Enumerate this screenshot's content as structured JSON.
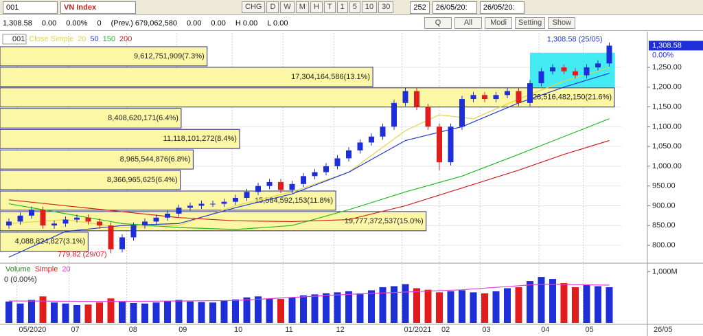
{
  "toolbar": {
    "symbol": "001",
    "name": "VN Index",
    "buttons": [
      "CHG",
      "D",
      "W",
      "M",
      "H",
      "T",
      "1",
      "5",
      "10",
      "30"
    ],
    "bars": "252",
    "from": "26/05/20:",
    "to": "26/05/20:"
  },
  "info_bar": {
    "fields": [
      "1,308.58",
      "0.00",
      "0.00%",
      "0",
      "(Prev.) 679,062,580",
      "0.00",
      "0.00",
      "H 0.00",
      "L 0.00"
    ],
    "buttons": [
      "Q",
      "All",
      "Modi",
      "Setting",
      "Show"
    ]
  },
  "chart_data": [
    {
      "type": "candlestick",
      "symbol": "001",
      "indicator": "Close Simple",
      "up_color": "#1f2fd8",
      "down_color": "#e01c1c",
      "open": [
        850,
        860,
        875,
        890,
        850,
        855,
        865,
        870,
        860,
        850,
        790,
        820,
        850,
        860,
        870,
        880,
        895,
        900,
        905,
        905,
        910,
        920,
        935,
        950,
        960,
        940,
        955,
        975,
        985,
        1000,
        1020,
        1040,
        1060,
        1075,
        1100,
        1160,
        1190,
        1150,
        1100,
        1010,
        1100,
        1170,
        1180,
        1170,
        1180,
        1190,
        1160,
        1210,
        1240,
        1250,
        1240,
        1230,
        1250,
        1260
      ],
      "high": [
        868,
        883,
        898,
        898,
        863,
        873,
        878,
        878,
        868,
        858,
        828,
        858,
        868,
        878,
        888,
        903,
        908,
        913,
        913,
        918,
        928,
        943,
        958,
        968,
        968,
        963,
        983,
        993,
        1008,
        1028,
        1048,
        1068,
        1083,
        1108,
        1168,
        1198,
        1198,
        1158,
        1108,
        1108,
        1178,
        1188,
        1188,
        1188,
        1198,
        1198,
        1218,
        1248,
        1258,
        1258,
        1248,
        1258,
        1268,
        1313
      ],
      "low": [
        842,
        852,
        867,
        842,
        842,
        847,
        857,
        852,
        842,
        780,
        782,
        812,
        842,
        852,
        862,
        872,
        887,
        892,
        897,
        897,
        902,
        912,
        927,
        942,
        932,
        932,
        947,
        967,
        977,
        992,
        1012,
        1032,
        1052,
        1067,
        1092,
        1152,
        1142,
        1092,
        990,
        1002,
        1092,
        1162,
        1162,
        1162,
        1172,
        1152,
        1152,
        1202,
        1232,
        1232,
        1222,
        1222,
        1242,
        1252
      ],
      "close": [
        860,
        875,
        890,
        850,
        855,
        865,
        870,
        860,
        850,
        790,
        820,
        850,
        860,
        870,
        880,
        895,
        900,
        905,
        905,
        910,
        920,
        935,
        950,
        960,
        940,
        955,
        975,
        985,
        1000,
        1020,
        1040,
        1060,
        1075,
        1100,
        1160,
        1190,
        1150,
        1100,
        1010,
        1100,
        1170,
        1180,
        1170,
        1180,
        1190,
        1160,
        1210,
        1240,
        1250,
        1240,
        1230,
        1250,
        1260,
        1305
      ],
      "series": [
        {
          "name": "20",
          "color": "#e2d44a",
          "x": [
            0,
            5,
            10,
            15,
            20,
            25,
            30,
            35,
            38,
            41,
            45,
            49,
            53
          ],
          "values": [
            855,
            865,
            845,
            850,
            900,
            935,
            985,
            1090,
            1130,
            1120,
            1170,
            1215,
            1250
          ]
        },
        {
          "name": "50",
          "color": "#2038d0",
          "x": [
            0,
            5,
            10,
            15,
            20,
            25,
            30,
            35,
            40,
            45,
            49,
            53
          ],
          "values": [
            770,
            835,
            850,
            855,
            895,
            930,
            985,
            1065,
            1100,
            1160,
            1200,
            1235
          ]
        },
        {
          "name": "150",
          "color": "#22b822",
          "x": [
            0,
            5,
            10,
            15,
            20,
            25,
            30,
            35,
            40,
            45,
            49,
            53
          ],
          "values": [
            905,
            880,
            855,
            845,
            840,
            850,
            890,
            935,
            975,
            1030,
            1075,
            1120
          ]
        },
        {
          "name": "200",
          "color": "#d02020",
          "x": [
            0,
            5,
            10,
            15,
            20,
            25,
            30,
            35,
            40,
            45,
            49,
            53
          ],
          "values": [
            915,
            900,
            885,
            870,
            862,
            860,
            865,
            900,
            945,
            990,
            1030,
            1065
          ]
        }
      ],
      "volume_profile": {
        "color": "#fbf7a4",
        "bins": [
          783,
          835,
          887,
          939,
          991,
          1043,
          1095,
          1148,
          1200,
          1252,
          1304
        ],
        "values": [
          4088824827,
          19777372537,
          15584592153,
          8366965625,
          8965544876,
          11118101272,
          8408620171,
          28516482150,
          17304164586,
          9612751909
        ],
        "value_labels": [
          "4,088,824,827(3.1%)",
          "19,777,372,537(15.0%)",
          "15,584,592,153(11.8%)",
          "8,366,965,625(6.4%)",
          "8,965,544,876(6.8%)",
          "11,118,101,272(8.4%)",
          "8,408,620,171(6.4%)",
          "28,516,482,150(21.6%)",
          "17,304,164,586(13.1%)",
          "9,612,751,909(7.3%)"
        ]
      },
      "selection": {
        "x": [
          46,
          53.5
        ],
        "y": [
          1200,
          1287
        ],
        "color": "#22e8f0"
      },
      "high_label": "1,308.58 (25/05)",
      "low_label": "779.82 (29/07)",
      "last_label": "1,308.58",
      "change_label": "0.00%",
      "ylim": [
        760,
        1337
      ],
      "yticks": [
        {
          "value": 800,
          "label": "800.00"
        },
        {
          "value": 850,
          "label": "850.00"
        },
        {
          "value": 900,
          "label": "900.00"
        },
        {
          "value": 950,
          "label": "950.00"
        },
        {
          "value": 1000,
          "label": "1,000.00"
        },
        {
          "value": 1050,
          "label": "1,050.00"
        },
        {
          "value": 1100,
          "label": "1,100.00"
        },
        {
          "value": 1150,
          "label": "1,150.00"
        },
        {
          "value": 1200,
          "label": "1,200.00"
        },
        {
          "value": 1250,
          "label": "1,250.00"
        }
      ],
      "xticks": [
        {
          "value": 0.7,
          "label": "05/2020"
        },
        {
          "value": 5.3,
          "label": "07"
        },
        {
          "value": 10.4,
          "label": "08"
        },
        {
          "value": 14.8,
          "label": "09"
        },
        {
          "value": 19.7,
          "label": "10"
        },
        {
          "value": 24.2,
          "label": "11"
        },
        {
          "value": 28.7,
          "label": "12"
        },
        {
          "value": 34.7,
          "label": "01/2021"
        },
        {
          "value": 38,
          "label": "02"
        },
        {
          "value": 41.6,
          "label": "03"
        },
        {
          "value": 46.8,
          "label": "04"
        },
        {
          "value": 50.7,
          "label": "05"
        }
      ],
      "end_label": "26/05",
      "grid": true
    },
    {
      "type": "bar",
      "indicator": "Volume",
      "method": "Simple",
      "status": "0 (0.00%)",
      "values": [
        420,
        380,
        450,
        520,
        400,
        380,
        350,
        360,
        400,
        480,
        420,
        390,
        380,
        400,
        430,
        450,
        420,
        410,
        400,
        440,
        460,
        500,
        520,
        480,
        470,
        500,
        540,
        560,
        580,
        600,
        620,
        580,
        640,
        700,
        720,
        760,
        680,
        650,
        600,
        620,
        640,
        600,
        580,
        620,
        680,
        700,
        820,
        900,
        860,
        780,
        700,
        740,
        720,
        700
      ],
      "series": [
        {
          "name": "20",
          "color": "#e040d8",
          "x": [
            0,
            10,
            20,
            30,
            40,
            47,
            53
          ],
          "values": [
            430,
            420,
            440,
            560,
            650,
            760,
            740
          ]
        }
      ],
      "ylim": [
        0,
        1130
      ],
      "yticks": [
        {
          "value": 1000,
          "label": "1,000M"
        }
      ]
    }
  ]
}
